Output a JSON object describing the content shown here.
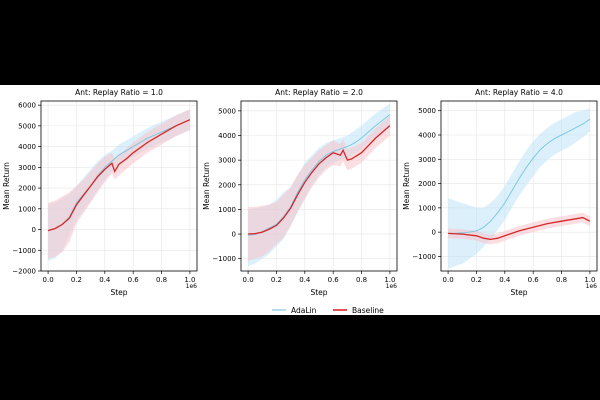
{
  "figure": {
    "x_multiplier_label": "1e6",
    "legend": [
      {
        "name": "AdaLin",
        "color": "#7ec8e3"
      },
      {
        "name": "Baseline",
        "color": "#d62728"
      }
    ]
  },
  "colors": {
    "adalin_band": "#bfe3f7",
    "baseline_band": "#f6c3c8"
  },
  "chart_data": [
    {
      "type": "line",
      "title": "Ant: Replay Ratio = 1.0",
      "xlabel": "Step",
      "ylabel": "Mean Return",
      "xlim": [
        -0.05,
        1.05
      ],
      "ylim": [
        -2000,
        6200
      ],
      "xticks": [
        0.0,
        0.2,
        0.4,
        0.6,
        0.8,
        1.0
      ],
      "xtick_labels": [
        "0.0",
        "0.2",
        "0.4",
        "0.6",
        "0.8",
        "1.0"
      ],
      "yticks": [
        -2000,
        -1000,
        0,
        1000,
        2000,
        3000,
        4000,
        5000,
        6000
      ],
      "ytick_labels": [
        "−2000",
        "−1000",
        "0",
        "1000",
        "2000",
        "3000",
        "4000",
        "5000",
        "6000"
      ],
      "series": [
        {
          "name": "AdaLin",
          "x": [
            0,
            0.05,
            0.1,
            0.15,
            0.2,
            0.25,
            0.3,
            0.35,
            0.4,
            0.45,
            0.5,
            0.55,
            0.6,
            0.7,
            0.8,
            0.9,
            1.0
          ],
          "y": [
            -50,
            50,
            250,
            600,
            1300,
            1700,
            2100,
            2600,
            3000,
            3300,
            3600,
            3800,
            4000,
            4400,
            4700,
            5000,
            5300
          ],
          "lower": [
            -1500,
            -1400,
            -1000,
            -300,
            500,
            900,
            1400,
            1900,
            2400,
            2800,
            3100,
            3300,
            3500,
            3900,
            4200,
            4500,
            4800
          ],
          "upper": [
            1200,
            1300,
            1500,
            1700,
            2100,
            2500,
            2900,
            3300,
            3600,
            3800,
            4100,
            4300,
            4500,
            4900,
            5200,
            5500,
            5800
          ]
        },
        {
          "name": "Baseline",
          "x": [
            0,
            0.05,
            0.1,
            0.15,
            0.2,
            0.25,
            0.3,
            0.35,
            0.4,
            0.45,
            0.47,
            0.5,
            0.55,
            0.6,
            0.7,
            0.8,
            0.9,
            1.0
          ],
          "y": [
            -50,
            50,
            250,
            550,
            1200,
            1650,
            2100,
            2550,
            2900,
            3200,
            2800,
            3150,
            3400,
            3700,
            4200,
            4600,
            5000,
            5300
          ],
          "lower": [
            -1400,
            -1300,
            -1100,
            -600,
            300,
            800,
            1300,
            1800,
            2300,
            2700,
            2400,
            2600,
            2900,
            3200,
            3700,
            4100,
            4500,
            4800
          ],
          "upper": [
            1300,
            1400,
            1600,
            1800,
            2100,
            2400,
            2800,
            3200,
            3500,
            3700,
            3400,
            3600,
            3900,
            4200,
            4700,
            5100,
            5500,
            5800
          ]
        }
      ]
    },
    {
      "type": "line",
      "title": "Ant: Replay Ratio = 2.0",
      "xlabel": "Step",
      "ylabel": "Mean Return",
      "xlim": [
        -0.05,
        1.05
      ],
      "ylim": [
        -1500,
        5400
      ],
      "xticks": [
        0.0,
        0.2,
        0.4,
        0.6,
        0.8,
        1.0
      ],
      "xtick_labels": [
        "0.0",
        "0.2",
        "0.4",
        "0.6",
        "0.8",
        "1.0"
      ],
      "yticks": [
        -1000,
        0,
        1000,
        2000,
        3000,
        4000,
        5000
      ],
      "ytick_labels": [
        "−1000",
        "0",
        "1000",
        "2000",
        "3000",
        "4000",
        "5000"
      ],
      "series": [
        {
          "name": "AdaLin",
          "x": [
            0,
            0.05,
            0.1,
            0.15,
            0.2,
            0.25,
            0.3,
            0.35,
            0.4,
            0.45,
            0.5,
            0.55,
            0.6,
            0.65,
            0.7,
            0.75,
            0.8,
            0.9,
            1.0
          ],
          "y": [
            -50,
            -20,
            100,
            250,
            400,
            700,
            1100,
            1700,
            2200,
            2600,
            2950,
            3200,
            3350,
            3450,
            3550,
            3700,
            3900,
            4400,
            4850
          ],
          "lower": [
            -1300,
            -1200,
            -1000,
            -800,
            -500,
            -200,
            300,
            900,
            1500,
            2000,
            2400,
            2700,
            2900,
            3000,
            3100,
            3250,
            3450,
            3950,
            4400
          ],
          "upper": [
            1000,
            1050,
            1100,
            1200,
            1400,
            1700,
            1900,
            2400,
            2900,
            3200,
            3500,
            3700,
            3800,
            3900,
            4000,
            4200,
            4400,
            4900,
            5300
          ]
        },
        {
          "name": "Baseline",
          "x": [
            0,
            0.05,
            0.1,
            0.15,
            0.2,
            0.25,
            0.3,
            0.35,
            0.4,
            0.45,
            0.5,
            0.55,
            0.6,
            0.65,
            0.67,
            0.7,
            0.73,
            0.8,
            0.9,
            1.0
          ],
          "y": [
            0,
            20,
            80,
            200,
            350,
            650,
            1050,
            1600,
            2100,
            2500,
            2850,
            3100,
            3300,
            3200,
            3400,
            3000,
            3050,
            3300,
            3900,
            4400
          ],
          "lower": [
            -1100,
            -1000,
            -900,
            -700,
            -400,
            -150,
            350,
            900,
            1400,
            1900,
            2300,
            2600,
            2800,
            2750,
            2950,
            2600,
            2650,
            2900,
            3500,
            4000
          ],
          "upper": [
            1100,
            1100,
            1150,
            1200,
            1300,
            1600,
            1900,
            2400,
            2800,
            3100,
            3400,
            3600,
            3800,
            3650,
            3850,
            3450,
            3500,
            3700,
            4300,
            4800
          ]
        }
      ]
    },
    {
      "type": "line",
      "title": "Ant: Replay Ratio = 4.0",
      "xlabel": "Step",
      "ylabel": "Mean Return",
      "xlim": [
        -0.05,
        1.05
      ],
      "ylim": [
        -1600,
        5400
      ],
      "xticks": [
        0.0,
        0.2,
        0.4,
        0.6,
        0.8,
        1.0
      ],
      "xtick_labels": [
        "0.0",
        "0.2",
        "0.4",
        "0.6",
        "0.8",
        "1.0"
      ],
      "yticks": [
        -1000,
        0,
        1000,
        2000,
        3000,
        4000,
        5000
      ],
      "ytick_labels": [
        "−1000",
        "0",
        "1000",
        "2000",
        "3000",
        "4000",
        "5000"
      ],
      "series": [
        {
          "name": "AdaLin",
          "x": [
            0,
            0.05,
            0.1,
            0.15,
            0.2,
            0.25,
            0.3,
            0.35,
            0.4,
            0.45,
            0.5,
            0.55,
            0.6,
            0.65,
            0.7,
            0.75,
            0.8,
            0.85,
            0.9,
            0.95,
            1.0
          ],
          "y": [
            -50,
            -50,
            -30,
            0,
            50,
            200,
            450,
            800,
            1200,
            1700,
            2200,
            2650,
            3050,
            3400,
            3650,
            3850,
            4000,
            4150,
            4300,
            4450,
            4650
          ],
          "lower": [
            -1500,
            -1400,
            -1300,
            -1100,
            -900,
            -600,
            -300,
            100,
            500,
            1000,
            1500,
            1900,
            2300,
            2700,
            2950,
            3200,
            3350,
            3500,
            3700,
            3900,
            4150
          ],
          "upper": [
            1400,
            1300,
            1200,
            1100,
            1000,
            1000,
            1200,
            1500,
            1900,
            2400,
            2900,
            3350,
            3750,
            4050,
            4300,
            4500,
            4650,
            4800,
            4950,
            5000,
            5100
          ]
        },
        {
          "name": "Baseline",
          "x": [
            0,
            0.1,
            0.2,
            0.25,
            0.3,
            0.35,
            0.4,
            0.5,
            0.6,
            0.7,
            0.8,
            0.9,
            0.95,
            1.0
          ],
          "y": [
            -50,
            -80,
            -150,
            -250,
            -300,
            -250,
            -150,
            50,
            200,
            350,
            450,
            550,
            600,
            450
          ],
          "lower": [
            -250,
            -280,
            -350,
            -450,
            -500,
            -450,
            -350,
            -150,
            0,
            150,
            250,
            350,
            400,
            250
          ],
          "upper": [
            150,
            120,
            50,
            -50,
            -100,
            -50,
            50,
            250,
            400,
            550,
            650,
            750,
            800,
            650
          ]
        }
      ]
    }
  ]
}
